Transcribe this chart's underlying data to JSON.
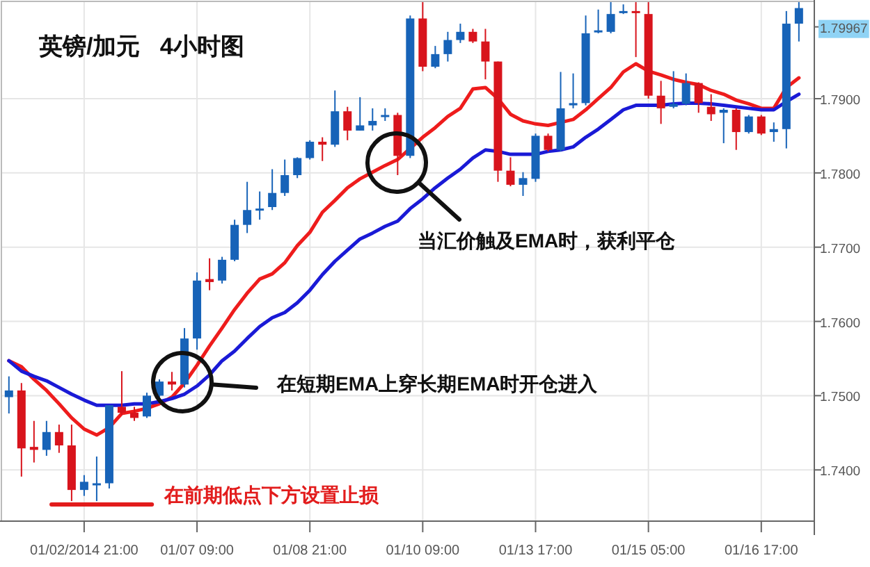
{
  "chart_data": {
    "type": "candlestick",
    "title": "英镑/加元   4小时图",
    "categories": [
      null,
      null,
      null,
      null,
      null,
      null,
      "01/02/2014 21:00",
      null,
      null,
      null,
      null,
      null,
      null,
      null,
      null,
      "01/07 09:00",
      null,
      null,
      null,
      null,
      null,
      null,
      null,
      null,
      "01/08 21:00",
      null,
      null,
      null,
      null,
      null,
      null,
      null,
      null,
      "01/10 09:00",
      null,
      null,
      null,
      null,
      null,
      null,
      null,
      null,
      "01/13 17:00",
      null,
      null,
      null,
      null,
      null,
      null,
      null,
      null,
      "01/15 05:00",
      null,
      null,
      null,
      null,
      null,
      null,
      null,
      null,
      "01/16 17:00",
      null,
      null,
      null
    ],
    "ohlc": [
      [
        1.7498,
        1.7526,
        1.7476,
        1.7507
      ],
      [
        1.7507,
        1.7517,
        1.7391,
        1.7429
      ],
      [
        1.7431,
        1.7466,
        1.741,
        1.7427
      ],
      [
        1.7427,
        1.7466,
        1.7419,
        1.7451
      ],
      [
        1.7451,
        1.7461,
        1.7423,
        1.7433
      ],
      [
        1.7433,
        1.7461,
        1.7358,
        1.7373
      ],
      [
        1.7373,
        1.7393,
        1.7365,
        1.7384
      ],
      [
        1.738,
        1.7418,
        1.7358,
        1.7382
      ],
      [
        1.7382,
        1.7487,
        1.7375,
        1.7487
      ],
      [
        1.7485,
        1.7533,
        1.7474,
        1.7477
      ],
      [
        1.7477,
        1.7485,
        1.7466,
        1.747
      ],
      [
        1.7472,
        1.7504,
        1.747,
        1.75
      ],
      [
        1.75,
        1.7522,
        1.7498,
        1.7519
      ],
      [
        1.7519,
        1.7532,
        1.7507,
        1.7515
      ],
      [
        1.7515,
        1.7591,
        1.7511,
        1.7577
      ],
      [
        1.7577,
        1.7666,
        1.7562,
        1.7655
      ],
      [
        1.7657,
        1.7685,
        1.7642,
        1.7653
      ],
      [
        1.7655,
        1.7687,
        1.7651,
        1.7683
      ],
      [
        1.7683,
        1.7737,
        1.7681,
        1.773
      ],
      [
        1.773,
        1.7788,
        1.7719,
        1.775
      ],
      [
        1.775,
        1.7775,
        1.7737,
        1.7752
      ],
      [
        1.7754,
        1.7805,
        1.775,
        1.7773
      ],
      [
        1.7773,
        1.7818,
        1.7769,
        1.7797
      ],
      [
        1.7797,
        1.7821,
        1.7793,
        1.782
      ],
      [
        1.782,
        1.7844,
        1.7818,
        1.7842
      ],
      [
        1.7842,
        1.7848,
        1.7816,
        1.7838
      ],
      [
        1.7838,
        1.7911,
        1.7835,
        1.7883
      ],
      [
        1.7883,
        1.7889,
        1.7844,
        1.7857
      ],
      [
        1.7857,
        1.7902,
        1.7857,
        1.7864
      ],
      [
        1.7864,
        1.7887,
        1.7857,
        1.787
      ],
      [
        1.7876,
        1.7887,
        1.787,
        1.7878
      ],
      [
        1.7878,
        1.7881,
        1.7797,
        1.7823
      ],
      [
        1.7823,
        1.8012,
        1.782,
        1.8008
      ],
      [
        1.8008,
        1.803,
        1.7937,
        1.7943
      ],
      [
        1.7943,
        1.7971,
        1.7941,
        1.796
      ],
      [
        1.796,
        1.799,
        1.795,
        1.7979
      ],
      [
        1.7979,
        1.8001,
        1.7975,
        1.799
      ],
      [
        1.799,
        1.7994,
        1.7975,
        1.7977
      ],
      [
        1.7977,
        1.7994,
        1.7926,
        1.795
      ],
      [
        1.795,
        1.795,
        1.7788,
        1.7803
      ],
      [
        1.7803,
        1.7821,
        1.7782,
        1.7784
      ],
      [
        1.7784,
        1.7801,
        1.7769,
        1.7793
      ],
      [
        1.7792,
        1.7853,
        1.7788,
        1.785
      ],
      [
        1.785,
        1.7853,
        1.7829,
        1.7831
      ],
      [
        1.7831,
        1.7936,
        1.7829,
        1.7887
      ],
      [
        1.7891,
        1.7934,
        1.7887,
        1.7894
      ],
      [
        1.7894,
        1.8012,
        1.7891,
        1.7988
      ],
      [
        1.799,
        1.802,
        1.7988,
        1.7992
      ],
      [
        1.799,
        1.803,
        1.7988,
        1.8014
      ],
      [
        1.8016,
        1.8027,
        1.8014,
        1.8018
      ],
      [
        1.8018,
        1.803,
        1.7956,
        1.8016
      ],
      [
        1.8014,
        1.803,
        1.79,
        1.7904
      ],
      [
        1.7904,
        1.7924,
        1.7866,
        1.7887
      ],
      [
        1.7889,
        1.7937,
        1.7887,
        1.7893
      ],
      [
        1.7893,
        1.7934,
        1.7891,
        1.7921
      ],
      [
        1.7921,
        1.7922,
        1.7881,
        1.7894
      ],
      [
        1.7889,
        1.7906,
        1.787,
        1.7879
      ],
      [
        1.7881,
        1.7887,
        1.784,
        1.7885
      ],
      [
        1.7885,
        1.7887,
        1.7831,
        1.7855
      ],
      [
        1.7855,
        1.7878,
        1.7853,
        1.7876
      ],
      [
        1.7876,
        1.7878,
        1.7851,
        1.7853
      ],
      [
        1.7855,
        1.7868,
        1.7842,
        1.7859
      ],
      [
        1.7859,
        1.8018,
        1.7833,
        1.8001
      ],
      [
        1.8001,
        1.803,
        1.7977,
        1.8022
      ]
    ],
    "colors": [
      "#1763b8",
      "#d8141c",
      "#d8141c",
      "#1763b8",
      "#d8141c",
      "#d8141c",
      "#1763b8",
      "#1763b8",
      "#1763b8",
      "#d8141c",
      "#d8141c",
      "#1763b8",
      "#1763b8",
      "#d8141c",
      "#1763b8",
      "#1763b8",
      "#d8141c",
      "#1763b8",
      "#1763b8",
      "#1763b8",
      "#1763b8",
      "#1763b8",
      "#1763b8",
      "#1763b8",
      "#1763b8",
      "#d8141c",
      "#1763b8",
      "#d8141c",
      "#1763b8",
      "#1763b8",
      "#1763b8",
      "#d8141c",
      "#1763b8",
      "#d8141c",
      "#1763b8",
      "#1763b8",
      "#1763b8",
      "#d8141c",
      "#d8141c",
      "#d8141c",
      "#d8141c",
      "#1763b8",
      "#1763b8",
      "#d8141c",
      "#1763b8",
      "#1763b8",
      "#1763b8",
      "#1763b8",
      "#1763b8",
      "#1763b8",
      "#d8141c",
      "#d8141c",
      "#d8141c",
      "#1763b8",
      "#1763b8",
      "#d8141c",
      "#d8141c",
      "#1763b8",
      "#d8141c",
      "#1763b8",
      "#d8141c",
      "#1763b8",
      "#1763b8",
      "#1763b8"
    ],
    "series": [
      {
        "type": "line",
        "color": "#ee1c1c",
        "values": [
          1.7547,
          1.7539,
          1.7522,
          1.7507,
          1.7489,
          1.747,
          1.7455,
          1.7447,
          1.7457,
          1.7476,
          1.7479,
          1.7483,
          1.7489,
          1.7498,
          1.7517,
          1.7541,
          1.7567,
          1.7591,
          1.7616,
          1.7638,
          1.7657,
          1.7664,
          1.7679,
          1.7702,
          1.772,
          1.7747,
          1.7763,
          1.778,
          1.7792,
          1.7801,
          1.781,
          1.7818,
          1.7833,
          1.7848,
          1.7861,
          1.7876,
          1.7887,
          1.7913,
          1.7915,
          1.79,
          1.7879,
          1.787,
          1.7866,
          1.7864,
          1.7868,
          1.7872,
          1.7885,
          1.79,
          1.7915,
          1.7936,
          1.7947,
          1.7937,
          1.7932,
          1.7926,
          1.7922,
          1.7919,
          1.7911,
          1.7906,
          1.7898,
          1.7893,
          1.7887,
          1.7887,
          1.7915,
          1.7928
        ]
      },
      {
        "type": "line",
        "color": "#1a1ad6",
        "values": [
          1.7547,
          1.7533,
          1.7526,
          1.752,
          1.7511,
          1.7502,
          1.7494,
          1.7487,
          1.7487,
          1.7487,
          1.7489,
          1.7489,
          1.7492,
          1.7496,
          1.7502,
          1.7513,
          1.7528,
          1.7547,
          1.756,
          1.7577,
          1.7593,
          1.7605,
          1.7612,
          1.7625,
          1.7642,
          1.7663,
          1.7681,
          1.7696,
          1.7711,
          1.7719,
          1.7728,
          1.7735,
          1.7752,
          1.7765,
          1.778,
          1.7793,
          1.7805,
          1.782,
          1.7831,
          1.7829,
          1.7825,
          1.7825,
          1.7825,
          1.7829,
          1.7831,
          1.7835,
          1.7848,
          1.7859,
          1.7872,
          1.7885,
          1.7891,
          1.7891,
          1.7891,
          1.7893,
          1.7894,
          1.7894,
          1.7893,
          1.7891,
          1.7889,
          1.7887,
          1.7885,
          1.7885,
          1.7896,
          1.7906
        ]
      }
    ],
    "ylim": [
      1.7331,
      1.8031
    ],
    "yticks": [
      {
        "value": 1.74,
        "label": "1.7400"
      },
      {
        "value": 1.75,
        "label": "1.7500"
      },
      {
        "value": 1.76,
        "label": "1.7600"
      },
      {
        "value": 1.77,
        "label": "1.7700"
      },
      {
        "value": 1.78,
        "label": "1.7800"
      },
      {
        "value": 1.79,
        "label": "1.7900"
      },
      {
        "value": 1.79967,
        "label": "1.79967"
      }
    ],
    "grid": true,
    "annotations": [
      "当汇价触及EMA时，获利平仓",
      "在短期EMA上穿长期EMA时开仓进入",
      "在前期低点下方设置止损"
    ]
  }
}
